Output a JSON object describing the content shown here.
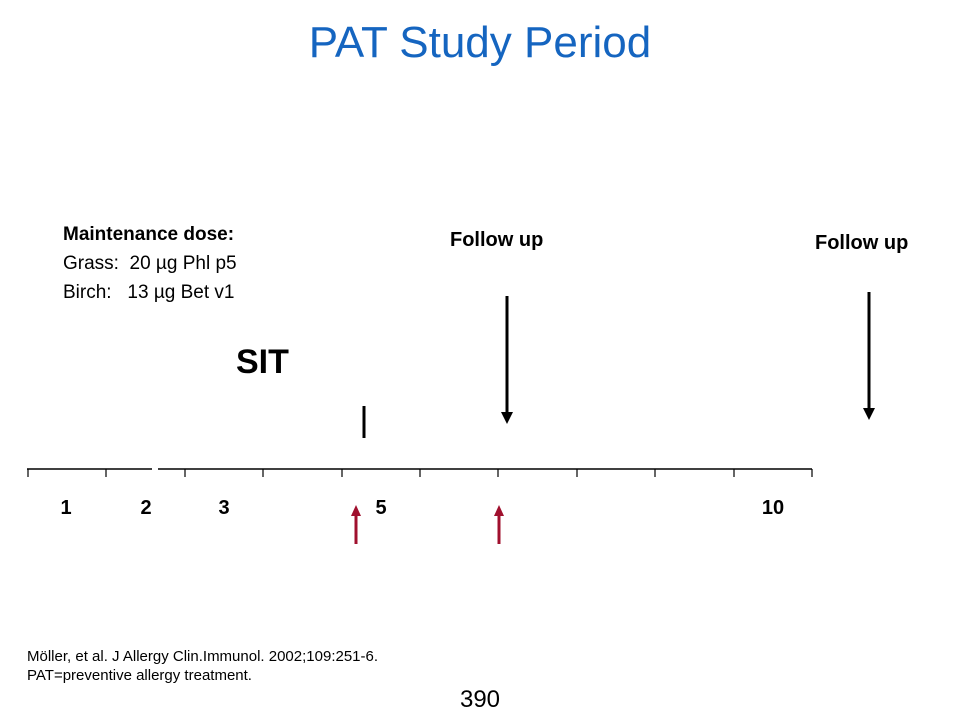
{
  "title": "PAT Study Period",
  "maintenance": {
    "heading": "Maintenance dose:",
    "grass": "Grass:  20 µg Phl p5",
    "birch": "Birch:   13 µg Bet v1"
  },
  "follow_up_1": "Follow up",
  "follow_up_2": "Follow up",
  "sit_label": "SIT",
  "timeline_labels": [
    "1",
    "2",
    "3",
    "5",
    "10"
  ],
  "reference": {
    "citation": "Möller, et al. J Allergy Clin.Immunol. 2002;109:251-6.",
    "abbreviation": "PAT=preventive allergy treatment."
  },
  "page_number": "390",
  "colors": {
    "title": "#1565C0",
    "red_arrow": "#A0102E",
    "black": "#000000"
  }
}
